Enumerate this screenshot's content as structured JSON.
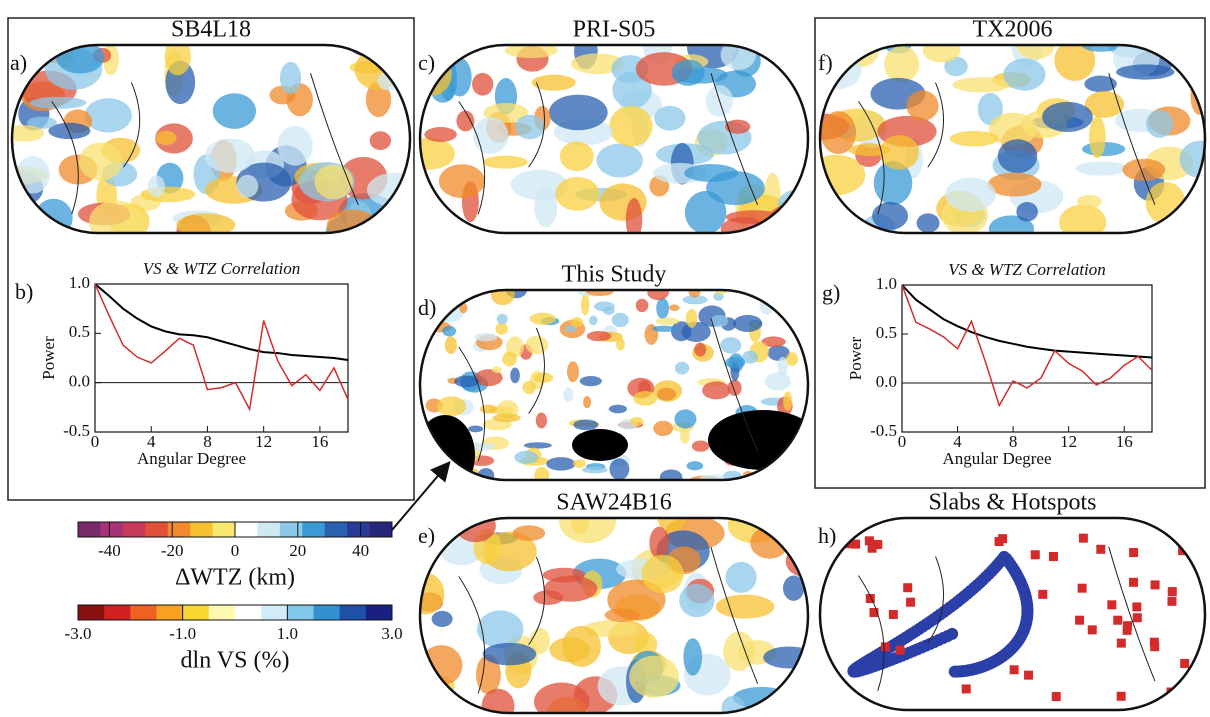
{
  "panels": [
    {
      "letter": "a)",
      "title": "SB4L18"
    },
    {
      "letter": "c)",
      "title": "PRI-S05"
    },
    {
      "letter": "f)",
      "title": "TX2006"
    },
    {
      "letter": "d)",
      "title": "This Study"
    },
    {
      "letter": "e)",
      "title": "SAW24B16"
    },
    {
      "letter": "h)",
      "title": "Slabs & Hotspots"
    }
  ],
  "colorbars": [
    {
      "label": "ΔWTZ (km)",
      "lim": [
        -50,
        50
      ],
      "ticks": [
        -40,
        -20,
        0,
        20,
        40
      ],
      "colors": [
        "#7a2a6a",
        "#a8327a",
        "#c73a5a",
        "#e0503a",
        "#f08a2a",
        "#f6c030",
        "#f8e870",
        "#ffffff",
        "#cfe8f4",
        "#8cc8e8",
        "#3a9ad6",
        "#2a60b0",
        "#2a3a9a",
        "#26267a"
      ]
    },
    {
      "label": "dln VS (%)",
      "lim": [
        -3,
        3
      ],
      "ticks": [
        {
          "value": -3,
          "label": "-3.0"
        },
        {
          "value": -1,
          "label": "-1.0"
        },
        {
          "value": 1,
          "label": "1.0"
        },
        {
          "value": 3,
          "label": "3.0"
        }
      ],
      "colors": [
        "#8a1010",
        "#d02020",
        "#f06020",
        "#f8a020",
        "#f8d830",
        "#fff8b0",
        "#ffffff",
        "#d0ecf8",
        "#80c8e8",
        "#3090d0",
        "#2050a8",
        "#1a2080"
      ]
    }
  ],
  "chart_data": [
    {
      "type": "line",
      "letter": "b)",
      "title": "VS & WTZ Correlation",
      "xlabel": "Angular Degree",
      "ylabel": "Power",
      "x": [
        0,
        1,
        2,
        3,
        4,
        5,
        6,
        7,
        8,
        9,
        10,
        11,
        12,
        13,
        14,
        15,
        16,
        17,
        18
      ],
      "xlim": [
        0,
        18
      ],
      "xticks": [
        0,
        4,
        8,
        12,
        16
      ],
      "ylim": [
        -0.5,
        1.0
      ],
      "yticks": [
        {
          "value": -0.5,
          "label": "-0.5"
        },
        {
          "value": 0,
          "label": "0.0"
        },
        {
          "value": 0.5,
          "label": "0.5"
        },
        {
          "value": 1.0,
          "label": "1.0"
        }
      ],
      "series": [
        {
          "color": "#000000",
          "values": [
            1.0,
            0.88,
            0.75,
            0.65,
            0.57,
            0.52,
            0.49,
            0.48,
            0.46,
            0.42,
            0.38,
            0.34,
            0.31,
            0.3,
            0.28,
            0.27,
            0.26,
            0.25,
            0.23
          ]
        },
        {
          "color": "#d62a2a",
          "values": [
            1.0,
            0.68,
            0.38,
            0.26,
            0.2,
            0.32,
            0.45,
            0.38,
            -0.07,
            -0.05,
            0.0,
            -0.27,
            0.63,
            0.22,
            -0.03,
            0.08,
            -0.08,
            0.15,
            -0.17
          ]
        }
      ]
    },
    {
      "type": "line",
      "letter": "g)",
      "title": "VS & WTZ Correlation",
      "xlabel": "Angular Degree",
      "ylabel": "Power",
      "x": [
        0,
        1,
        2,
        3,
        4,
        5,
        6,
        7,
        8,
        9,
        10,
        11,
        12,
        13,
        14,
        15,
        16,
        17,
        18
      ],
      "xlim": [
        0,
        18
      ],
      "xticks": [
        0,
        4,
        8,
        12,
        16
      ],
      "ylim": [
        -0.5,
        1.0
      ],
      "yticks": [
        {
          "value": -0.5,
          "label": "-0.5"
        },
        {
          "value": 0,
          "label": "0.0"
        },
        {
          "value": 0.5,
          "label": "0.5"
        },
        {
          "value": 1.0,
          "label": "1.0"
        }
      ],
      "series": [
        {
          "color": "#000000",
          "values": [
            1.0,
            0.85,
            0.75,
            0.65,
            0.58,
            0.52,
            0.47,
            0.43,
            0.4,
            0.37,
            0.35,
            0.33,
            0.32,
            0.31,
            0.3,
            0.29,
            0.28,
            0.27,
            0.26
          ]
        },
        {
          "color": "#d62a2a",
          "values": [
            1.0,
            0.62,
            0.55,
            0.47,
            0.35,
            0.63,
            0.22,
            -0.23,
            0.02,
            -0.05,
            0.05,
            0.33,
            0.2,
            0.12,
            -0.02,
            0.05,
            0.18,
            0.27,
            0.13
          ]
        }
      ]
    }
  ]
}
